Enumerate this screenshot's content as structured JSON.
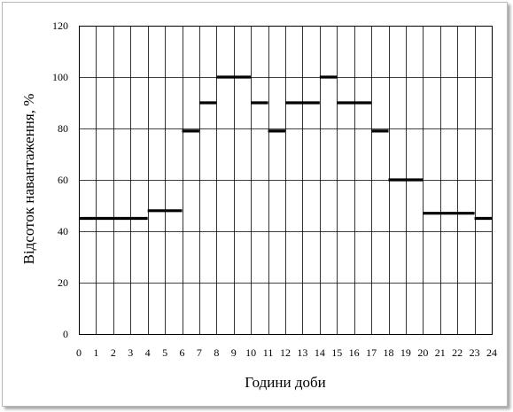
{
  "chart_data": {
    "type": "step",
    "xlabel": "Години доби",
    "ylabel": "Відсоток навантаження, %",
    "xlim": [
      0,
      24
    ],
    "ylim": [
      0,
      120
    ],
    "x_ticks": [
      "0",
      "1",
      "2",
      "3",
      "4",
      "5",
      "6",
      "7",
      "8",
      "9",
      "10",
      "11",
      "12",
      "13",
      "14",
      "15",
      "16",
      "17",
      "18",
      "19",
      "20",
      "21",
      "22",
      "23",
      "24"
    ],
    "y_ticks": [
      "0",
      "20",
      "40",
      "60",
      "80",
      "100",
      "120"
    ],
    "grid": true,
    "colors": {
      "line": "#000000",
      "grid": "#000000",
      "frame": "#b8b8b8"
    },
    "segments": [
      {
        "x0": 0,
        "x1": 4,
        "y": 45
      },
      {
        "x0": 4,
        "x1": 6,
        "y": 48
      },
      {
        "x0": 6,
        "x1": 7,
        "y": 79
      },
      {
        "x0": 7,
        "x1": 8,
        "y": 90
      },
      {
        "x0": 8,
        "x1": 10,
        "y": 100
      },
      {
        "x0": 10,
        "x1": 11,
        "y": 90
      },
      {
        "x0": 11,
        "x1": 12,
        "y": 79
      },
      {
        "x0": 12,
        "x1": 14,
        "y": 90
      },
      {
        "x0": 14,
        "x1": 15,
        "y": 100
      },
      {
        "x0": 15,
        "x1": 17,
        "y": 90
      },
      {
        "x0": 17,
        "x1": 18,
        "y": 79
      },
      {
        "x0": 18,
        "x1": 20,
        "y": 60
      },
      {
        "x0": 20,
        "x1": 23,
        "y": 47
      },
      {
        "x0": 23,
        "x1": 24,
        "y": 45
      }
    ]
  }
}
